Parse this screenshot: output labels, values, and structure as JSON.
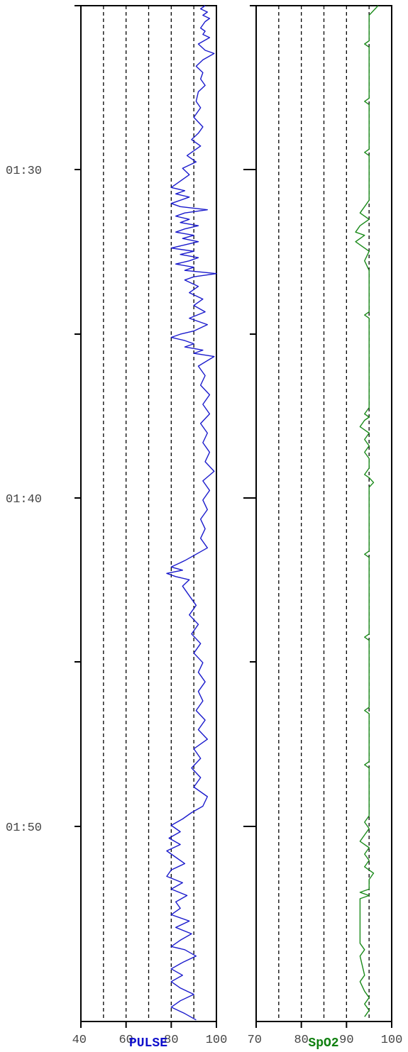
{
  "chart_data": [
    {
      "type": "line",
      "title": "PULSE",
      "title_color": "#1010cc",
      "line_color": "#1a1acc",
      "x_axis": {
        "min": 40,
        "max": 100,
        "tick_labels": [
          "40",
          "60",
          "80",
          "100"
        ],
        "gridlines": [
          50,
          60,
          70,
          80,
          90
        ]
      },
      "y_axis": {
        "time_labels": [
          "01:30",
          "01:40",
          "01:50"
        ]
      },
      "series": [
        {
          "values": [
            [
              95,
              0
            ],
            [
              93,
              0.1
            ],
            [
              96,
              0.2
            ],
            [
              94,
              0.3
            ],
            [
              97,
              0.4
            ],
            [
              95,
              0.5
            ],
            [
              94,
              0.6
            ],
            [
              93,
              0.7
            ],
            [
              95,
              0.8
            ],
            [
              94,
              0.9
            ],
            [
              97,
              1.0
            ],
            [
              92,
              1.2
            ],
            [
              95,
              1.4
            ],
            [
              99,
              1.5
            ],
            [
              94,
              1.7
            ],
            [
              91,
              1.9
            ],
            [
              94,
              2.1
            ],
            [
              93,
              2.3
            ],
            [
              95,
              2.5
            ],
            [
              92,
              2.7
            ],
            [
              91,
              3.0
            ],
            [
              93,
              3.2
            ],
            [
              90,
              3.5
            ],
            [
              94,
              3.8
            ],
            [
              92,
              4.0
            ],
            [
              89,
              4.2
            ],
            [
              93,
              4.4
            ],
            [
              87,
              4.7
            ],
            [
              91,
              4.9
            ],
            [
              85,
              5.1
            ],
            [
              88,
              5.3
            ],
            [
              84,
              5.5
            ],
            [
              80,
              5.7
            ],
            [
              86,
              5.8
            ],
            [
              82,
              5.9
            ],
            [
              88,
              6.0
            ],
            [
              84,
              6.1
            ],
            [
              80,
              6.2
            ],
            [
              84,
              6.3
            ],
            [
              96,
              6.4
            ],
            [
              86,
              6.5
            ],
            [
              82,
              6.6
            ],
            [
              88,
              6.7
            ],
            [
              84,
              6.8
            ],
            [
              92,
              6.9
            ],
            [
              86,
              7.0
            ],
            [
              82,
              7.1
            ],
            [
              90,
              7.2
            ],
            [
              85,
              7.3
            ],
            [
              92,
              7.4
            ],
            [
              86,
              7.5
            ],
            [
              80,
              7.6
            ],
            [
              90,
              7.7
            ],
            [
              84,
              7.8
            ],
            [
              92,
              7.9
            ],
            [
              88,
              8.0
            ],
            [
              82,
              8.1
            ],
            [
              90,
              8.2
            ],
            [
              86,
              8.3
            ],
            [
              100,
              8.4
            ],
            [
              90,
              8.5
            ],
            [
              86,
              8.6
            ],
            [
              92,
              8.8
            ],
            [
              88,
              9.0
            ],
            [
              94,
              9.2
            ],
            [
              90,
              9.4
            ],
            [
              95,
              9.6
            ],
            [
              88,
              9.8
            ],
            [
              96,
              10.0
            ],
            [
              90,
              10.2
            ],
            [
              84,
              10.3
            ],
            [
              80,
              10.4
            ],
            [
              86,
              10.5
            ],
            [
              90,
              10.6
            ],
            [
              86,
              10.7
            ],
            [
              94,
              10.8
            ],
            [
              90,
              10.9
            ],
            [
              99,
              11.0
            ],
            [
              92,
              11.3
            ],
            [
              95,
              11.6
            ],
            [
              93,
              11.9
            ],
            [
              97,
              12.2
            ],
            [
              94,
              12.5
            ],
            [
              97,
              12.8
            ],
            [
              93,
              13.1
            ],
            [
              96,
              13.4
            ],
            [
              94,
              13.7
            ],
            [
              97,
              14.0
            ],
            [
              95,
              14.3
            ],
            [
              99,
              14.6
            ],
            [
              94,
              14.9
            ],
            [
              97,
              15.2
            ],
            [
              94,
              15.5
            ],
            [
              96,
              15.8
            ],
            [
              93,
              16.1
            ],
            [
              95,
              16.4
            ],
            [
              93,
              16.7
            ],
            [
              96,
              17.0
            ],
            [
              91,
              17.2
            ],
            [
              86,
              17.4
            ],
            [
              80,
              17.6
            ],
            [
              85,
              17.7
            ],
            [
              78,
              17.8
            ],
            [
              82,
              17.9
            ],
            [
              88,
              18.0
            ],
            [
              85,
              18.2
            ],
            [
              88,
              18.5
            ],
            [
              91,
              18.8
            ],
            [
              88,
              19.1
            ],
            [
              92,
              19.4
            ],
            [
              89,
              19.7
            ],
            [
              93,
              20.0
            ],
            [
              90,
              20.3
            ],
            [
              94,
              20.6
            ],
            [
              92,
              20.9
            ],
            [
              95,
              21.2
            ],
            [
              92,
              21.5
            ],
            [
              94,
              21.8
            ],
            [
              91,
              22.1
            ],
            [
              95,
              22.4
            ],
            [
              92,
              22.7
            ],
            [
              96,
              23.0
            ],
            [
              90,
              23.3
            ],
            [
              93,
              23.6
            ],
            [
              89,
              23.9
            ],
            [
              93,
              24.2
            ],
            [
              90,
              24.5
            ],
            [
              96,
              24.8
            ],
            [
              94,
              25.1
            ],
            [
              89,
              25.3
            ],
            [
              85,
              25.5
            ],
            [
              80,
              25.7
            ],
            [
              84,
              25.9
            ],
            [
              79,
              26.1
            ],
            [
              84,
              26.3
            ],
            [
              78,
              26.5
            ],
            [
              82,
              26.7
            ],
            [
              86,
              26.9
            ],
            [
              80,
              27.1
            ],
            [
              78,
              27.3
            ],
            [
              85,
              27.5
            ],
            [
              80,
              27.7
            ],
            [
              87,
              27.9
            ],
            [
              82,
              28.1
            ],
            [
              84,
              28.3
            ],
            [
              80,
              28.5
            ],
            [
              88,
              28.7
            ],
            [
              82,
              28.9
            ],
            [
              89,
              29.1
            ],
            [
              84,
              29.3
            ],
            [
              80,
              29.5
            ],
            [
              86,
              29.6
            ],
            [
              91,
              29.8
            ],
            [
              85,
              30.0
            ],
            [
              80,
              30.2
            ],
            [
              85,
              30.4
            ],
            [
              80,
              30.6
            ],
            [
              84,
              30.8
            ],
            [
              90,
              31.0
            ],
            [
              84,
              31.2
            ],
            [
              80,
              31.4
            ],
            [
              86,
              31.6
            ],
            [
              91,
              31.8
            ]
          ]
        }
      ]
    },
    {
      "type": "line",
      "title": "SpO2",
      "title_color": "#108010",
      "line_color": "#1a8a1a",
      "x_axis": {
        "min": 70,
        "max": 100,
        "tick_labels": [
          "70",
          "80",
          "90",
          "100"
        ],
        "gridlines": [
          75,
          80,
          85,
          90,
          95
        ]
      },
      "series": [
        {
          "values": [
            [
              97,
              0
            ],
            [
              95,
              0.3
            ],
            [
              95,
              1.1
            ],
            [
              94,
              1.2
            ],
            [
              95,
              1.3
            ],
            [
              95,
              2.9
            ],
            [
              94,
              3.0
            ],
            [
              95,
              3.1
            ],
            [
              95,
              4.5
            ],
            [
              94,
              4.6
            ],
            [
              95,
              4.7
            ],
            [
              95,
              6.1
            ],
            [
              94,
              6.3
            ],
            [
              93,
              6.5
            ],
            [
              95,
              6.7
            ],
            [
              93,
              6.9
            ],
            [
              92,
              7.1
            ],
            [
              94,
              7.2
            ],
            [
              92,
              7.4
            ],
            [
              93,
              7.5
            ],
            [
              95,
              7.7
            ],
            [
              94,
              8.0
            ],
            [
              95,
              8.3
            ],
            [
              95,
              9.6
            ],
            [
              94,
              9.7
            ],
            [
              95,
              9.8
            ],
            [
              95,
              12.6
            ],
            [
              94,
              12.8
            ],
            [
              95,
              12.9
            ],
            [
              94,
              13.0
            ],
            [
              93,
              13.2
            ],
            [
              95,
              13.4
            ],
            [
              94,
              13.6
            ],
            [
              95,
              13.8
            ],
            [
              94,
              14.0
            ],
            [
              95,
              14.2
            ],
            [
              95,
              14.5
            ],
            [
              94,
              14.7
            ],
            [
              95,
              14.8
            ],
            [
              96,
              14.95
            ],
            [
              95,
              15.1
            ],
            [
              95,
              17.1
            ],
            [
              94,
              17.2
            ],
            [
              95,
              17.3
            ],
            [
              95,
              19.7
            ],
            [
              94,
              19.8
            ],
            [
              95,
              19.9
            ],
            [
              95,
              22.0
            ],
            [
              94,
              22.1
            ],
            [
              95,
              22.2
            ],
            [
              95,
              23.7
            ],
            [
              94,
              23.8
            ],
            [
              95,
              23.9
            ],
            [
              95,
              25.4
            ],
            [
              94,
              25.6
            ],
            [
              95,
              25.8
            ],
            [
              94,
              26.0
            ],
            [
              93,
              26.2
            ],
            [
              95,
              26.4
            ],
            [
              94,
              26.6
            ],
            [
              95,
              26.8
            ],
            [
              94,
              27.0
            ],
            [
              96,
              27.2
            ],
            [
              95,
              27.4
            ],
            [
              95,
              27.7
            ],
            [
              93,
              27.8
            ],
            [
              95,
              27.9
            ],
            [
              93,
              28.0
            ],
            [
              93,
              29.4
            ],
            [
              94,
              29.6
            ],
            [
              93,
              29.8
            ],
            [
              94,
              30.4
            ],
            [
              93,
              30.6
            ],
            [
              94,
              30.9
            ],
            [
              95,
              31.1
            ],
            [
              94,
              31.3
            ],
            [
              95,
              31.5
            ],
            [
              94,
              31.7
            ]
          ]
        }
      ]
    }
  ]
}
